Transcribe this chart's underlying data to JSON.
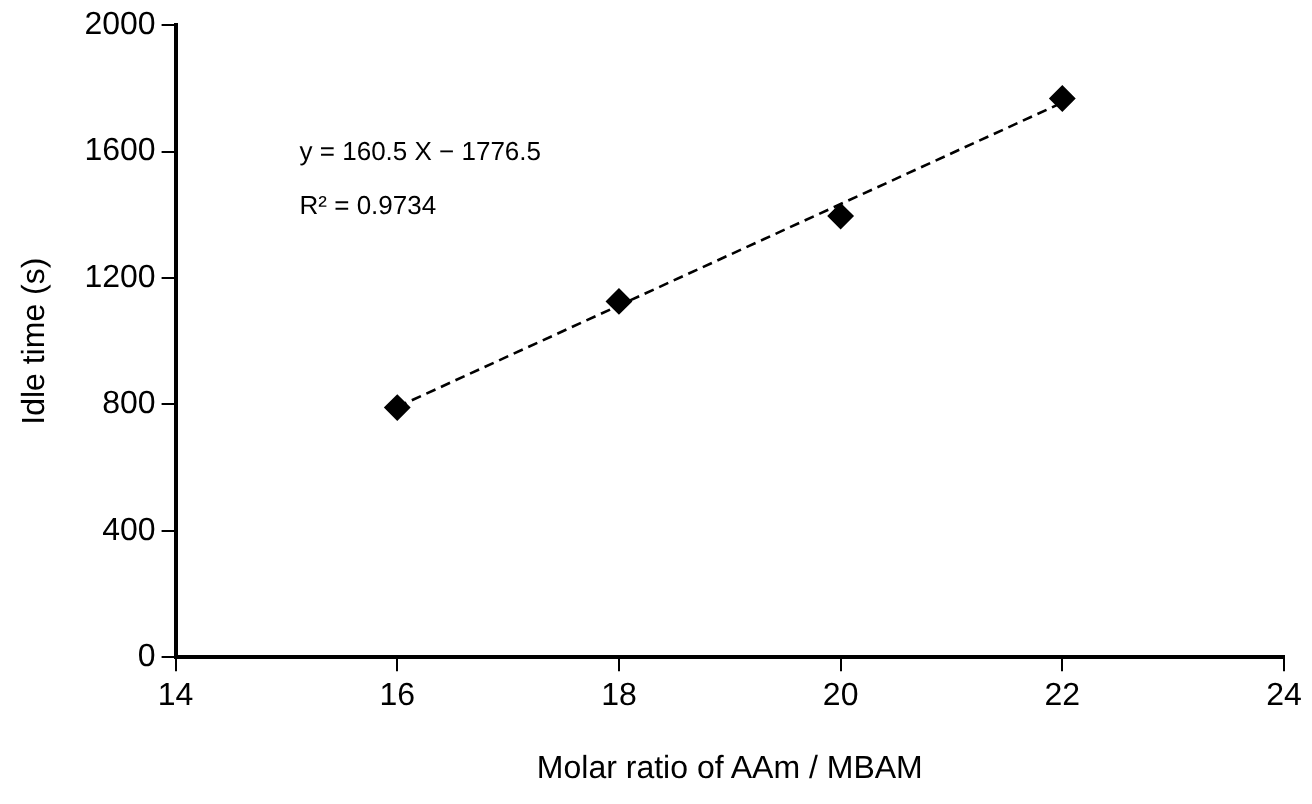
{
  "chart_data": {
    "type": "scatter",
    "xlabel": "Molar ratio of AAm / MBAM",
    "ylabel": "Idle time (s)",
    "series": [
      {
        "x": [
          16,
          18,
          20,
          22
        ],
        "values": [
          790,
          1126,
          1396,
          1768
        ],
        "color": "#000000",
        "marker": "diamond"
      },
      {
        "type": "line",
        "x": [
          16,
          22
        ],
        "values": [
          792,
          1755
        ],
        "color": "#000000",
        "line_style": "dashed",
        "marker": "none"
      }
    ],
    "xlim": [
      14,
      24
    ],
    "xticks": [
      14,
      16,
      18,
      20,
      22,
      24
    ],
    "ylim": [
      0,
      2000
    ],
    "yticks": [
      0,
      400,
      800,
      1200,
      1600,
      2000
    ],
    "grid": false,
    "legend": false,
    "annotations": [
      "y = 160.5 X − 1776.5",
      "R² = 0.9734"
    ]
  }
}
